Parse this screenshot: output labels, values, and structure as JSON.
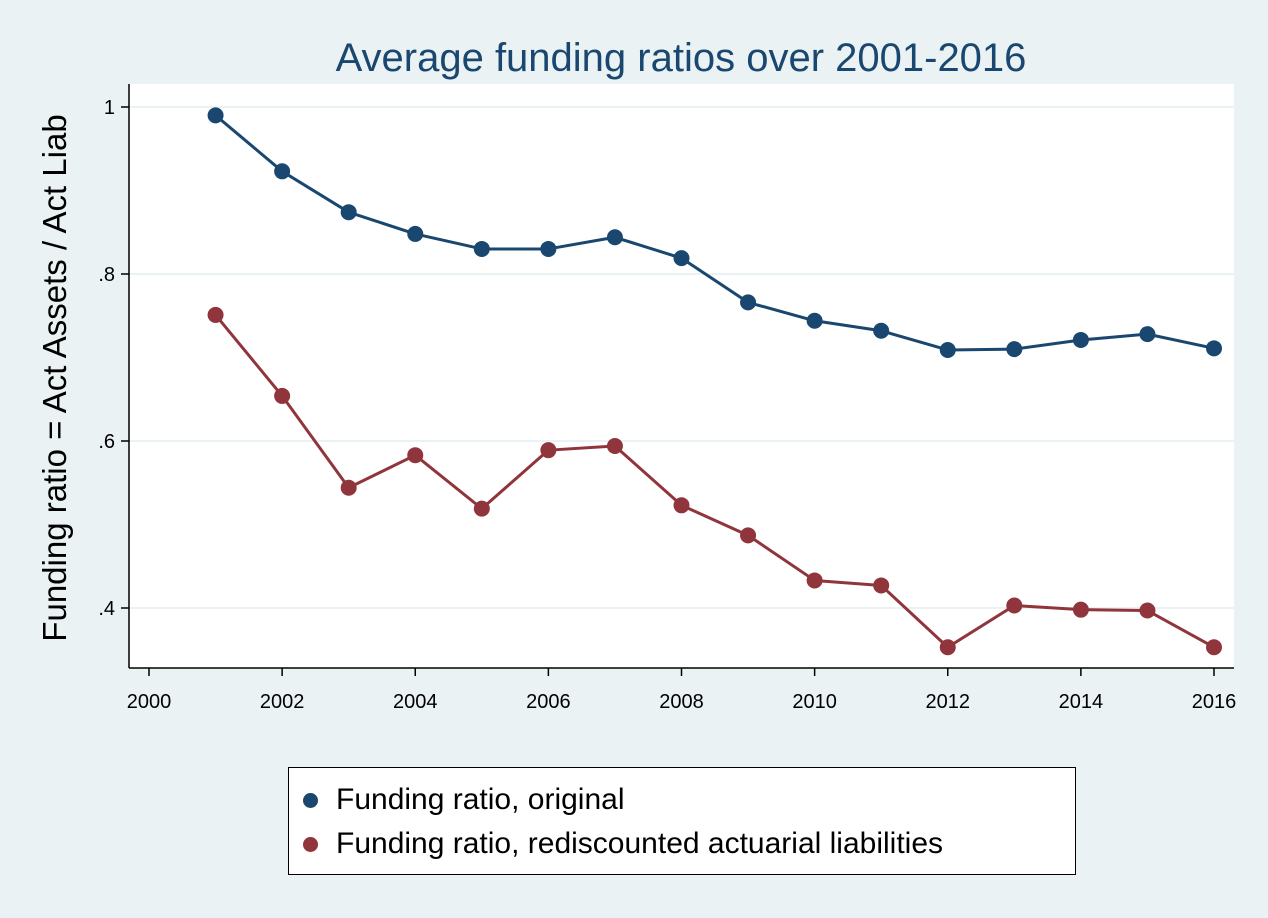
{
  "chart_data": {
    "type": "line",
    "title": "Average funding ratios over 2001-2016",
    "xlabel": "",
    "ylabel": "Funding ratio = Act Assets / Act Liab",
    "xlim": [
      2000,
      2016
    ],
    "ylim": [
      0.33,
      1.0
    ],
    "x_ticks": [
      2000,
      2002,
      2004,
      2006,
      2008,
      2010,
      2012,
      2014,
      2016
    ],
    "x_tick_labels": [
      "2000",
      "2002",
      "2004",
      "2006",
      "2008",
      "2010",
      "2012",
      "2014",
      "2016"
    ],
    "y_ticks": [
      0.4,
      0.6,
      0.8,
      1.0
    ],
    "y_tick_labels": [
      ".4",
      ".6",
      ".8",
      "1"
    ],
    "grid": true,
    "legend_position": "bottom",
    "x": [
      2001,
      2002,
      2003,
      2004,
      2005,
      2006,
      2007,
      2008,
      2009,
      2010,
      2011,
      2012,
      2013,
      2014,
      2015,
      2016
    ],
    "series": [
      {
        "name": "Funding ratio, original",
        "color": "#1a476f",
        "values": [
          0.99,
          0.923,
          0.874,
          0.848,
          0.83,
          0.83,
          0.844,
          0.819,
          0.766,
          0.744,
          0.732,
          0.709,
          0.71,
          0.721,
          0.728,
          0.711
        ]
      },
      {
        "name": "Funding ratio, rediscounted actuarial liabilities",
        "color": "#90353b",
        "values": [
          0.751,
          0.654,
          0.544,
          0.583,
          0.519,
          0.589,
          0.594,
          0.523,
          0.487,
          0.433,
          0.427,
          0.353,
          0.403,
          0.398,
          0.397,
          0.353
        ]
      }
    ],
    "colors": {
      "background": "#eaf2f3",
      "plot_background": "#ffffff",
      "grid": "#eaf2f3",
      "title": "#1a476f"
    }
  }
}
